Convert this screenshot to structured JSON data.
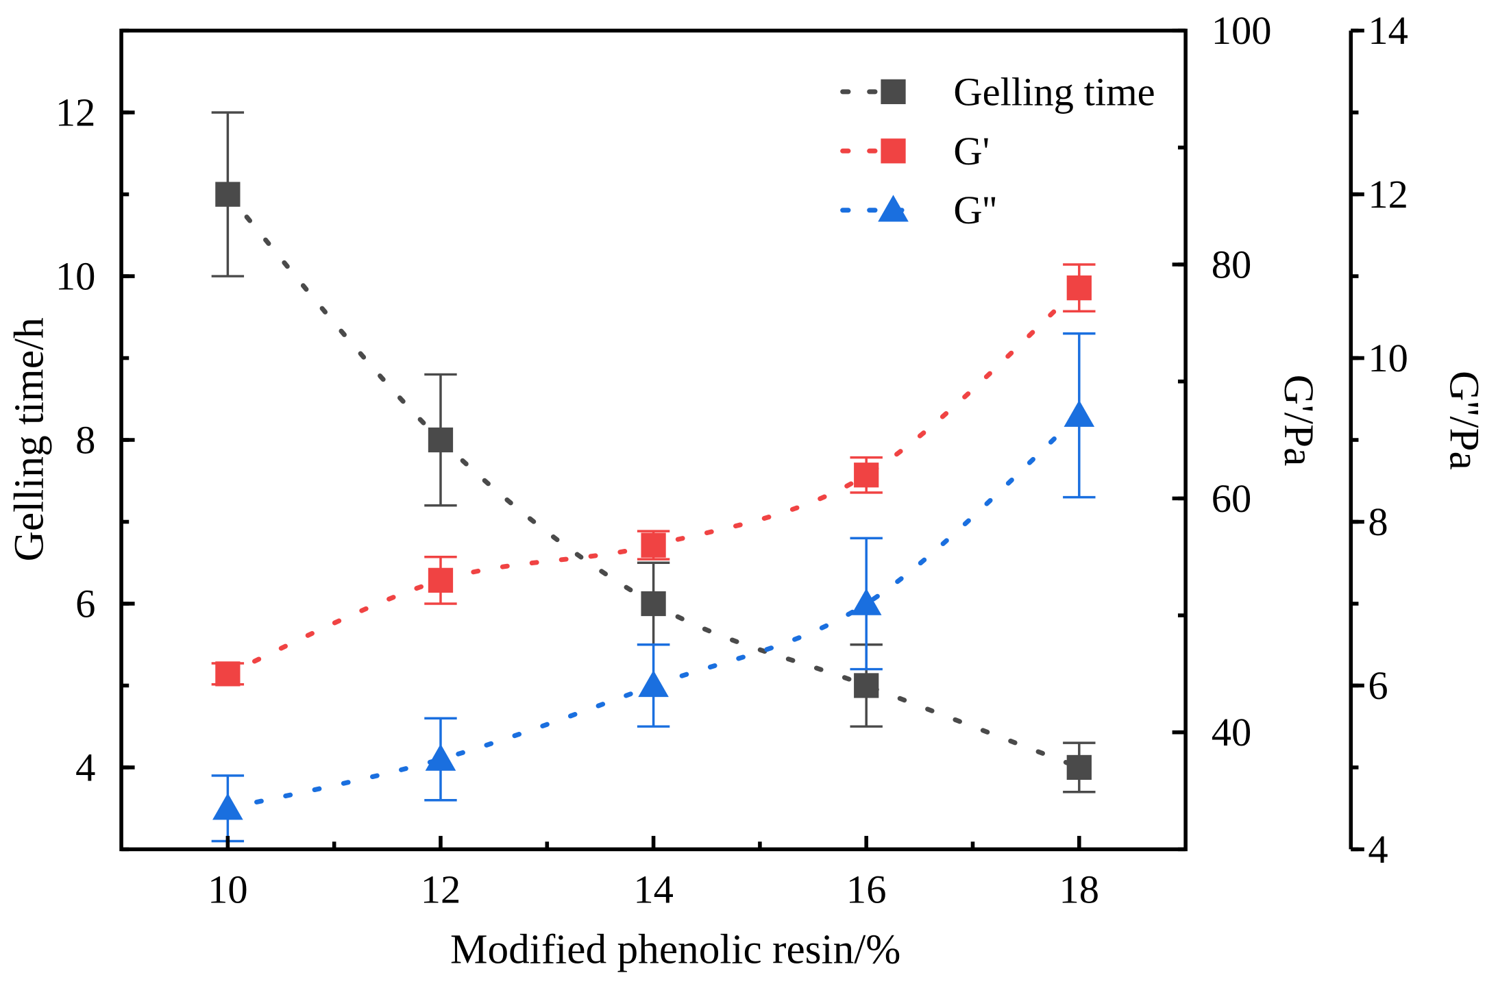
{
  "chart_data": {
    "type": "line",
    "xlabel": "Modified phenolic resin/%",
    "x": [
      10,
      12,
      14,
      16,
      18
    ],
    "xlim": [
      9,
      19
    ],
    "xticks": [
      "10",
      "12",
      "14",
      "16",
      "18"
    ],
    "axes": {
      "left": {
        "label": "Gelling time/h",
        "ylim": [
          3,
          13
        ],
        "ticks": [
          "4",
          "6",
          "8",
          "10",
          "12"
        ]
      },
      "right1": {
        "label": "G'/Pa",
        "ylim": [
          30,
          100
        ],
        "ticks": [
          "40",
          "60",
          "80",
          "100"
        ]
      },
      "right2": {
        "label": "G''/Pa",
        "ylim": [
          4,
          14
        ],
        "ticks": [
          "4",
          "6",
          "8",
          "10",
          "12",
          "14"
        ]
      }
    },
    "grid": false,
    "legend_position": "top-right",
    "series": [
      {
        "name": "Gelling time",
        "axis": "left",
        "marker": "square",
        "color": "#4a4a4a",
        "values": [
          11,
          8,
          6,
          5,
          4
        ],
        "errors": [
          1,
          0.8,
          0.5,
          0.5,
          0.3
        ]
      },
      {
        "name": "G'",
        "axis": "right1",
        "marker": "square",
        "color": "#f04343",
        "values": [
          45,
          53,
          56,
          62,
          78
        ],
        "errors": [
          0.9,
          2,
          1.2,
          1.5,
          2
        ]
      },
      {
        "name": "G''",
        "axis": "right2",
        "marker": "triangle",
        "color": "#1a6fdf",
        "values": [
          4.5,
          5.1,
          6.0,
          7.0,
          9.3
        ],
        "errors": [
          0.4,
          0.5,
          0.5,
          0.8,
          1.0
        ]
      }
    ]
  }
}
